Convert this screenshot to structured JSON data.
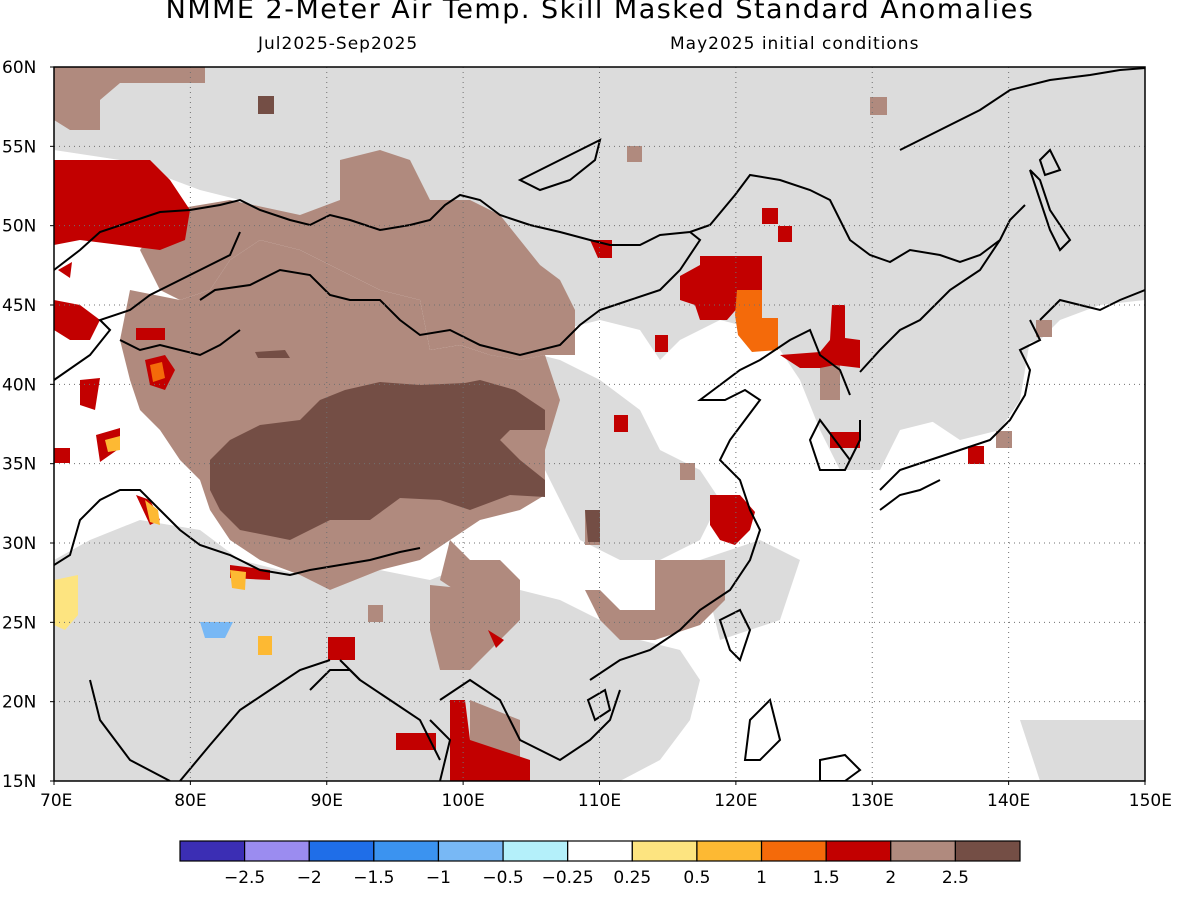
{
  "title": "NMME 2-Meter Air Temp. Skill Masked Standard Anomalies",
  "subtitle_left": "Jul2025-Sep2025",
  "subtitle_right": "May2025 initial conditions",
  "map": {
    "lon_range": [
      70,
      150
    ],
    "lat_range": [
      15,
      60
    ],
    "lon_ticks": [
      "70E",
      "80E",
      "90E",
      "100E",
      "110E",
      "120E",
      "130E",
      "140E",
      "150E"
    ],
    "lat_ticks": [
      "15N",
      "20N",
      "25N",
      "30N",
      "35N",
      "40N",
      "45N",
      "50N",
      "55N",
      "60N"
    ],
    "grid": true
  },
  "colorbar": {
    "colors": [
      "#3b2eb4",
      "#9b8cf0",
      "#1f6ee8",
      "#3b93f0",
      "#78b8f5",
      "#b4f0fa",
      "#ffffff",
      "#fde480",
      "#fdb933",
      "#f46a0a",
      "#c20000",
      "#b08a7e",
      "#744e45"
    ],
    "labels": [
      "-2.5",
      "-2",
      "-1.5",
      "-1",
      "-0.5",
      "-0.25",
      "0.25",
      "0.5",
      "1",
      "1.5",
      "2",
      "2.5"
    ]
  },
  "palette": {
    "no_skill": "#dcdcdc",
    "near_normal": "#ffffff",
    "above_2": "#c20000",
    "above_2_5": "#b08a7e",
    "above_3": "#744e45",
    "orange": "#f46a0a",
    "light_orange": "#fdb933",
    "yellow": "#fde480",
    "light_blue": "#78b8f5"
  }
}
